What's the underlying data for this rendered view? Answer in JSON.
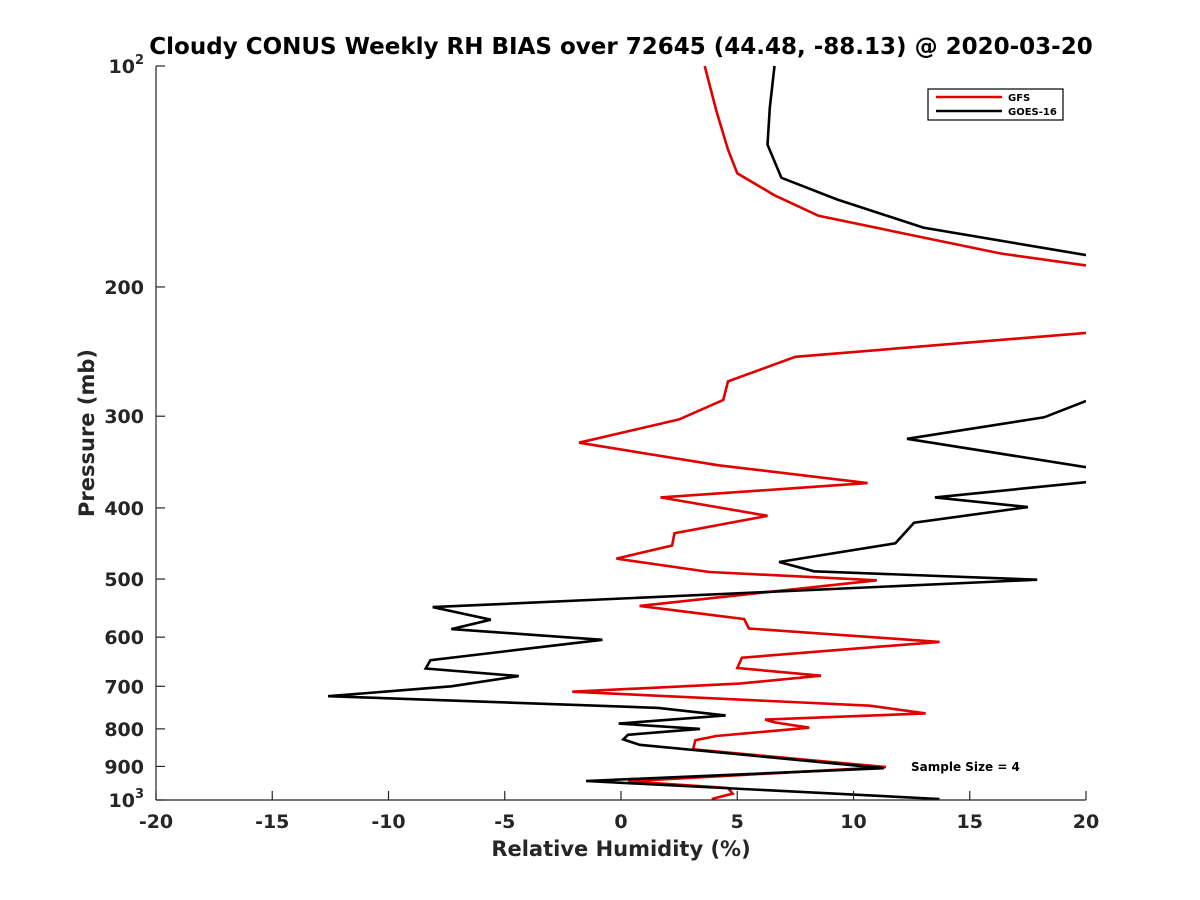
{
  "chart_data": {
    "type": "line",
    "title": "Cloudy CONUS Weekly RH BIAS over 72645 (44.48, -88.13) @ 2020-03-20",
    "xlabel": "Relative Humidity (%)",
    "ylabel": "Pressure (mb)",
    "xlim": [
      -20,
      20
    ],
    "ylim": [
      100,
      1000
    ],
    "y_scale": "log",
    "y_reversed": true,
    "x_ticks": [
      "-20",
      "-15",
      "-10",
      "-5",
      "0",
      "5",
      "10",
      "15",
      "20"
    ],
    "y_ticks": [
      {
        "value": 100,
        "base": "10",
        "exp": "2"
      },
      {
        "value": 200,
        "label": "200"
      },
      {
        "value": 300,
        "label": "300"
      },
      {
        "value": 400,
        "label": "400"
      },
      {
        "value": 500,
        "label": "500"
      },
      {
        "value": 600,
        "label": "600"
      },
      {
        "value": 700,
        "label": "700"
      },
      {
        "value": 800,
        "label": "800"
      },
      {
        "value": 900,
        "label": "900"
      },
      {
        "value": 1000,
        "base": "10",
        "exp": "3"
      }
    ],
    "grid": false,
    "legend_position": "top-right",
    "annotation": "Sample Size = 4",
    "series": [
      {
        "name": "GFS",
        "color": "#e00000",
        "points": [
          [
            3.6,
            100
          ],
          [
            4.1,
            115
          ],
          [
            4.6,
            130
          ],
          [
            5.0,
            140
          ],
          [
            6.6,
            150
          ],
          [
            8.5,
            160
          ],
          [
            16.3,
            180
          ],
          [
            20.0,
            187
          ],
          [
            null,
            null
          ],
          [
            20.0,
            231
          ],
          [
            7.5,
            249
          ],
          [
            4.6,
            269
          ],
          [
            4.4,
            285
          ],
          [
            2.5,
            303
          ],
          [
            -1.8,
            326
          ],
          [
            4.2,
            350
          ],
          [
            10.6,
            370
          ],
          [
            1.7,
            387
          ],
          [
            6.3,
            410
          ],
          [
            2.3,
            433
          ],
          [
            2.2,
            450
          ],
          [
            -0.2,
            469
          ],
          [
            3.8,
            489
          ],
          [
            11.0,
            502
          ],
          [
            0.8,
            544
          ],
          [
            5.3,
            567
          ],
          [
            5.5,
            584
          ],
          [
            13.7,
            609
          ],
          [
            5.2,
            640
          ],
          [
            5.0,
            661
          ],
          [
            8.6,
            677
          ],
          [
            5.1,
            694
          ],
          [
            -2.1,
            712
          ],
          [
            10.7,
            744
          ],
          [
            13.1,
            762
          ],
          [
            6.2,
            777
          ],
          [
            6.6,
            784
          ],
          [
            8.1,
            797
          ],
          [
            4.1,
            818
          ],
          [
            3.2,
            829
          ],
          [
            3.1,
            853
          ],
          [
            11.4,
            902
          ],
          [
            3.7,
            930
          ],
          [
            0.3,
            943
          ],
          [
            4.6,
            963
          ],
          [
            4.8,
            980
          ],
          [
            3.9,
            997
          ]
        ]
      },
      {
        "name": "GOES-16",
        "color": "#000000",
        "points": [
          [
            6.6,
            100
          ],
          [
            6.4,
            114
          ],
          [
            6.3,
            128
          ],
          [
            6.9,
            142
          ],
          [
            9.3,
            152
          ],
          [
            13.0,
            166
          ],
          [
            20.0,
            181
          ],
          [
            null,
            null
          ],
          [
            20.0,
            286
          ],
          [
            18.2,
            301
          ],
          [
            12.3,
            322
          ],
          [
            20.0,
            352
          ],
          [
            null,
            null
          ],
          [
            20.0,
            369
          ],
          [
            13.5,
            387
          ],
          [
            17.5,
            399
          ],
          [
            12.6,
            419
          ],
          [
            11.8,
            447
          ],
          [
            6.8,
            474
          ],
          [
            8.3,
            488
          ],
          [
            17.9,
            501
          ],
          [
            -8.1,
            546
          ],
          [
            -5.6,
            568
          ],
          [
            -7.3,
            585
          ],
          [
            -0.8,
            605
          ],
          [
            -8.2,
            645
          ],
          [
            -8.4,
            662
          ],
          [
            -4.4,
            678
          ],
          [
            -7.3,
            700
          ],
          [
            -12.6,
            722
          ],
          [
            1.6,
            749
          ],
          [
            4.5,
            767
          ],
          [
            -0.1,
            787
          ],
          [
            3.4,
            800
          ],
          [
            0.3,
            815
          ],
          [
            0.1,
            827
          ],
          [
            0.8,
            841
          ],
          [
            11.3,
            905
          ],
          [
            -1.5,
            942
          ],
          [
            13.7,
            997
          ]
        ]
      }
    ]
  }
}
